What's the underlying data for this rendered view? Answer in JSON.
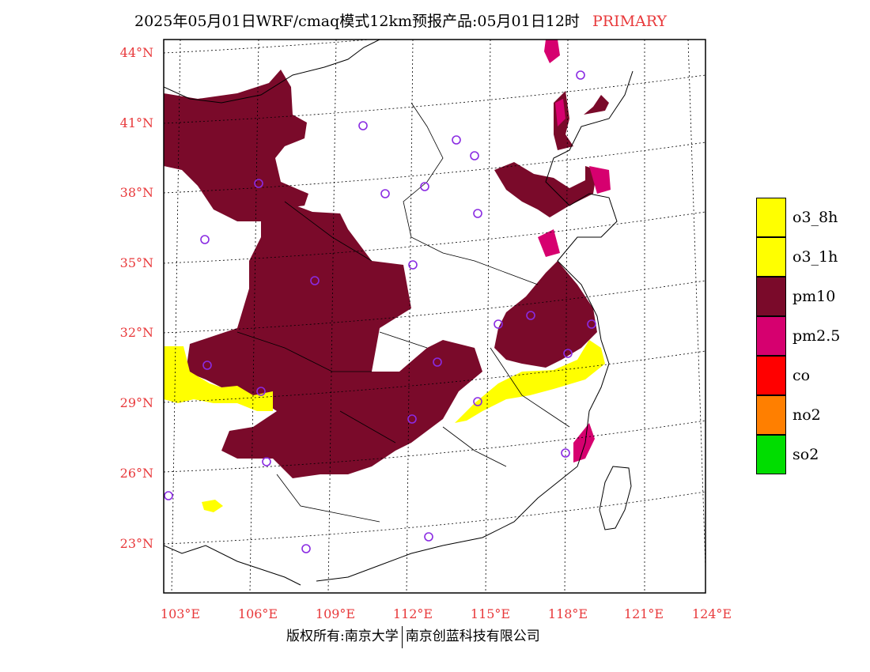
{
  "title": {
    "text": "2025年05月01日WRF/cmaq模式12km预报产品:05月01日12时",
    "tag": "PRIMARY"
  },
  "axes": {
    "lat_labels": [
      "44°N",
      "41°N",
      "38°N",
      "35°N",
      "32°N",
      "29°N",
      "26°N",
      "23°N"
    ],
    "lon_labels": [
      "103°E",
      "106°E",
      "109°E",
      "112°E",
      "115°E",
      "118°E",
      "121°E",
      "124°E"
    ]
  },
  "legend": [
    {
      "label": "o3_8h",
      "color": "#ffff00"
    },
    {
      "label": "o3_1h",
      "color": "#ffff00"
    },
    {
      "label": "pm10",
      "color": "#7a0a2a"
    },
    {
      "label": "pm2.5",
      "color": "#d6006f"
    },
    {
      "label": "co",
      "color": "#ff0000"
    },
    {
      "label": "no2",
      "color": "#ff7f00"
    },
    {
      "label": "so2",
      "color": "#00dd00"
    }
  ],
  "footer": {
    "left": "版权所有:南京大学",
    "right": "南京创蓝科技有限公司"
  },
  "colors": {
    "axis": "#e8393b",
    "pm10": "#7a0a2a",
    "pm25": "#d6006f",
    "o3": "#ffff00",
    "station": "#8a2be2"
  }
}
